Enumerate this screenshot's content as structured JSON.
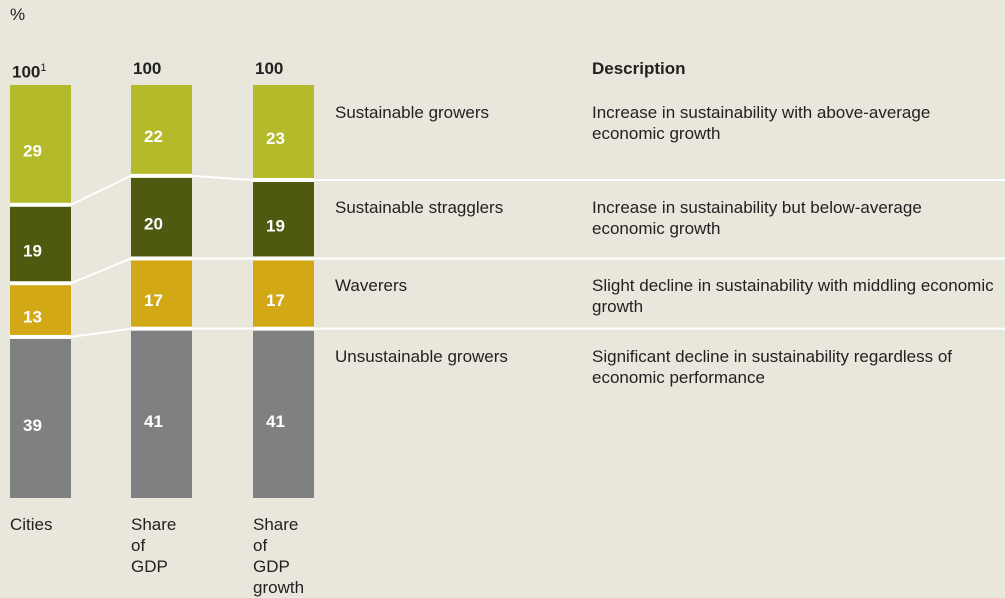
{
  "chart_data": {
    "type": "stacked-bar",
    "unit": "%",
    "categories": [
      "Cities",
      "Share of GDP",
      "Share of GDP growth"
    ],
    "totals": [
      100,
      100,
      100
    ],
    "footnote_marker": "1",
    "ylim": [
      0,
      100
    ],
    "description_header": "Description",
    "series": [
      {
        "name": "Unsustainable growers",
        "color": "#7f8082",
        "values": [
          39,
          41,
          41
        ],
        "description": "Significant decline in sustainability regardless of economic performance"
      },
      {
        "name": "Waverers",
        "color": "#d2a816",
        "values": [
          13,
          17,
          17
        ],
        "description": "Slight decline in sustainability with middling economic growth"
      },
      {
        "name": "Sustainable stragglers",
        "color": "#4f5910",
        "values": [
          19,
          20,
          19
        ],
        "description": "Increase in sustainability but below-average economic growth"
      },
      {
        "name": "Sustainable growers",
        "color": "#b4ba2a",
        "values": [
          29,
          22,
          23
        ],
        "description": "Increase in sustainability with above-average economic growth"
      }
    ]
  }
}
